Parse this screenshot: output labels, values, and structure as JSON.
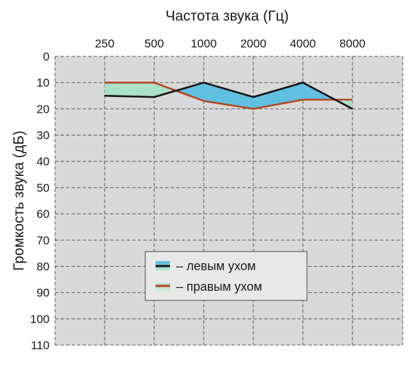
{
  "chart_data": {
    "type": "line",
    "title": "Частота звука (Гц)",
    "xlabel": "Частота звука (Гц)",
    "ylabel": "Громкость звука (дБ)",
    "categories": [
      "250",
      "500",
      "1000",
      "2000",
      "4000",
      "8000"
    ],
    "ylim": [
      0,
      110
    ],
    "y_ticks": [
      "0",
      "10",
      "20",
      "30",
      "40",
      "50",
      "60",
      "70",
      "80",
      "90",
      "100",
      "110"
    ],
    "y_inverted": true,
    "grid": true,
    "legend_position": "bottom-center",
    "series": [
      {
        "name": "– левым ухом",
        "color": "#111111",
        "values": [
          15,
          15.5,
          10,
          15.5,
          10,
          20
        ]
      },
      {
        "name": "– правым ухом",
        "color": "#b5431b",
        "values": [
          10,
          10,
          17,
          20,
          16.5,
          16.5
        ]
      }
    ],
    "fill_between": {
      "color_left_above": "#5bbfe3",
      "color_right_above": "#a9e0c8"
    },
    "colors": {
      "plot_bg": "#d9d9d9",
      "grid": "#555555",
      "legend_bg": "#e8e8e8"
    }
  }
}
